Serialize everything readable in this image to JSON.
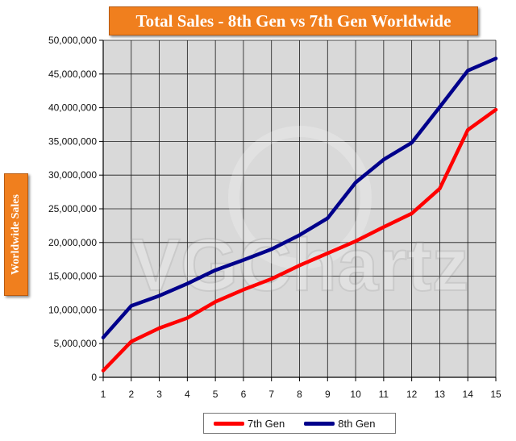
{
  "chart_data": {
    "type": "line",
    "title": "Total Sales - 8th Gen vs 7th Gen Worldwide",
    "xlabel": "",
    "ylabel": "Worldwide Sales",
    "x": [
      1,
      2,
      3,
      4,
      5,
      6,
      7,
      8,
      9,
      10,
      11,
      12,
      13,
      14,
      15
    ],
    "ylim": [
      0,
      50000000
    ],
    "yticks": [
      0,
      5000000,
      10000000,
      15000000,
      20000000,
      25000000,
      30000000,
      35000000,
      40000000,
      45000000,
      50000000
    ],
    "ytick_labels": [
      "0",
      "5,000,000",
      "10,000,000",
      "15,000,000",
      "20,000,000",
      "25,000,000",
      "30,000,000",
      "35,000,000",
      "40,000,000",
      "45,000,000",
      "50,000,000"
    ],
    "grid": true,
    "legend_position": "bottom",
    "series": [
      {
        "name": "7th Gen",
        "color": "#ff0000",
        "values": [
          1000000,
          5300000,
          7300000,
          8800000,
          11200000,
          13000000,
          14600000,
          16600000,
          18400000,
          20200000,
          22300000,
          24300000,
          28000000,
          36700000,
          39700000
        ]
      },
      {
        "name": "8th Gen",
        "color": "#00008b",
        "values": [
          5900000,
          10600000,
          12100000,
          13900000,
          15900000,
          17400000,
          19000000,
          21100000,
          23600000,
          28900000,
          32300000,
          34800000,
          40100000,
          45500000,
          47300000
        ]
      }
    ],
    "watermark": "VGChartz"
  }
}
